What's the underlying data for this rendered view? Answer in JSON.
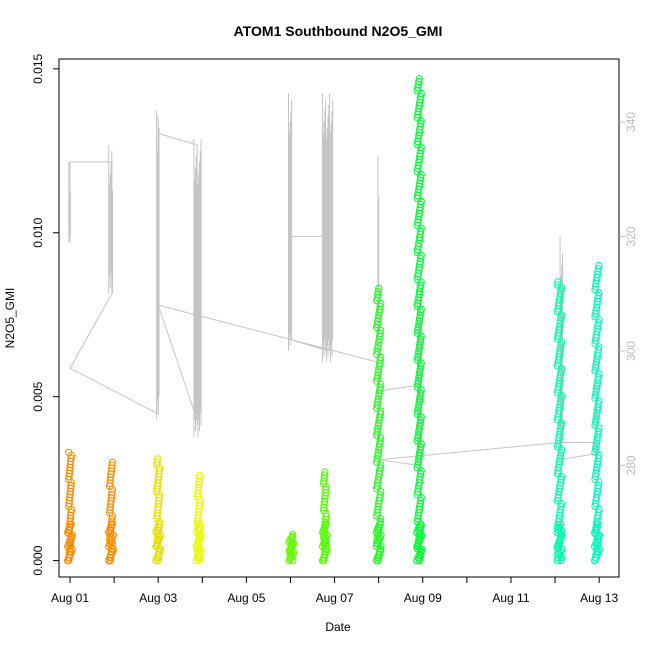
{
  "chart_data": {
    "type": "scatter",
    "title": "ATOM1 Southbound N2O5_GMI",
    "xlabel": "Date",
    "ylabel": "N2O5_GMI",
    "x_tick_labels": [
      "Aug 01",
      "Aug 03",
      "Aug 05",
      "Aug 07",
      "Aug 09",
      "Aug 11",
      "Aug 13"
    ],
    "y_tick_labels": [
      "0.000",
      "0.005",
      "0.010",
      "0.015"
    ],
    "y_ticks": [
      0.0,
      0.005,
      0.01,
      0.015
    ],
    "y2_tick_labels": [
      "280",
      "300",
      "320",
      "340"
    ],
    "y2_ticks": [
      280,
      300,
      320,
      340
    ],
    "xlim_days": [
      0.75,
      13.45
    ],
    "ylim": [
      -0.0005,
      0.0153
    ],
    "y2lim": [
      260.5,
      351
    ],
    "grid": false,
    "colors": {
      "axis": "#000000",
      "secondary_axis": "#bdbdbd",
      "secondary_line": "#c4c4c4"
    },
    "series": [
      {
        "x": 1.0,
        "ymax": 0.0033,
        "color": "#ff8c00"
      },
      {
        "x": 1.93,
        "ymax": 0.003,
        "color": "#ff8c00"
      },
      {
        "x": 3.0,
        "ymax": 0.0031,
        "color": "#e8e000"
      },
      {
        "x": 3.92,
        "ymax": 0.0026,
        "color": "#e8ff00"
      },
      {
        "x": 6.02,
        "ymax": 0.0008,
        "color": "#66ff00"
      },
      {
        "x": 6.78,
        "ymax": 0.0027,
        "color": "#55ff00"
      },
      {
        "x": 8.0,
        "ymax": 0.0083,
        "color": "#22ff22"
      },
      {
        "x": 8.92,
        "ymax": 0.0147,
        "color": "#00ff33"
      },
      {
        "x": 12.1,
        "ymax": 0.0085,
        "color": "#00ffaa"
      },
      {
        "x": 12.95,
        "ymax": 0.009,
        "color": "#00ffbb"
      }
    ],
    "secondary_series": {
      "name": "",
      "points": [
        [
          1.0,
          319
        ],
        [
          1.0,
          333
        ],
        [
          1.95,
          333
        ],
        [
          1.95,
          310
        ],
        [
          1.0,
          297
        ],
        [
          3.0,
          289
        ],
        [
          3.0,
          341
        ],
        [
          3.0,
          338
        ],
        [
          3.88,
          336
        ],
        [
          3.88,
          288
        ],
        [
          3.0,
          308
        ],
        [
          6.0,
          302
        ],
        [
          6.0,
          319
        ],
        [
          6.0,
          320
        ],
        [
          6.85,
          320
        ],
        [
          6.85,
          300
        ],
        [
          6.0,
          302
        ],
        [
          8.0,
          298
        ],
        [
          8.0,
          293
        ],
        [
          8.9,
          294
        ],
        [
          8.9,
          280
        ],
        [
          8.0,
          281
        ],
        [
          12.1,
          284
        ],
        [
          12.9,
          284
        ],
        [
          12.9,
          282
        ],
        [
          12.1,
          281
        ]
      ]
    }
  }
}
